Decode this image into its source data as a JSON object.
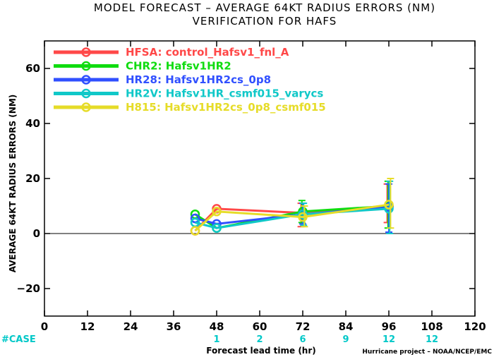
{
  "chart_data": {
    "type": "line",
    "title": "MODEL FORECAST – AVERAGE 64KT RADIUS ERRORS (NM)",
    "subtitle": "VERIFICATION FOR HAFS",
    "xlabel": "Forecast lead time (hr)",
    "ylabel": "AVERAGE 64KT RADIUS ERRORS (NM)",
    "xlim": [
      0,
      120
    ],
    "ylim": [
      -30,
      70
    ],
    "xticks": [
      "0",
      "12",
      "24",
      "36",
      "48",
      "60",
      "72",
      "84",
      "96",
      "108",
      "120"
    ],
    "yticks": [
      "−20",
      "0",
      "20",
      "40",
      "60"
    ],
    "ytick_values": [
      -20,
      0,
      20,
      40,
      60
    ],
    "zero_line": true,
    "grid": false,
    "legend_position": "top-left",
    "case_label": "#CASE",
    "case_counts": [
      {
        "x": 48,
        "n": "1"
      },
      {
        "x": 60,
        "n": "2"
      },
      {
        "x": 72,
        "n": "6"
      },
      {
        "x": 84,
        "n": "9"
      },
      {
        "x": 96,
        "n": "12"
      },
      {
        "x": 108,
        "n": "12"
      }
    ],
    "case_color": "#00c8c8",
    "series": [
      {
        "name": "HFSA: control_Hafsv1_fnl_A",
        "color": "#ff4848",
        "x": [
          42,
          48,
          72,
          96
        ],
        "y": [
          1.0,
          9.0,
          7.5,
          10.0
        ],
        "err": [
          null,
          null,
          [
            2.5,
            11.0
          ],
          [
            4.0,
            18.0
          ]
        ]
      },
      {
        "name": "CHR2: Hafsv1HR2",
        "color": "#10dc10",
        "x": [
          42,
          48,
          72,
          96
        ],
        "y": [
          7.0,
          2.0,
          8.0,
          10.0
        ],
        "err": [
          null,
          null,
          [
            4.0,
            12.0
          ],
          [
            2.0,
            19.0
          ]
        ]
      },
      {
        "name": "HR28: Hafsv1HR2cs_0p8",
        "color": "#3050ff",
        "x": [
          42,
          48,
          72,
          96
        ],
        "y": [
          5.5,
          3.5,
          7.0,
          9.5
        ],
        "err": [
          null,
          null,
          [
            3.5,
            11.0
          ],
          [
            0.5,
            18.0
          ]
        ]
      },
      {
        "name": "HR2V: Hafsv1HR_csmf015_varycs",
        "color": "#10c8c8",
        "x": [
          42,
          48,
          72,
          96
        ],
        "y": [
          4.0,
          2.0,
          7.0,
          9.0
        ],
        "err": [
          null,
          null,
          [
            3.0,
            11.0
          ],
          [
            0.0,
            19.0
          ]
        ]
      },
      {
        "name": "H815: Hafsv1HR2cs_0p8_csmf015",
        "color": "#e6dc28",
        "x": [
          42,
          48,
          72,
          96
        ],
        "y": [
          1.0,
          8.0,
          6.0,
          10.5
        ],
        "err": [
          null,
          null,
          [
            2.5,
            10.0
          ],
          [
            2.0,
            20.0
          ]
        ]
      }
    ],
    "credit": "Hurricane project – NOAA/NCEP/EMC"
  }
}
